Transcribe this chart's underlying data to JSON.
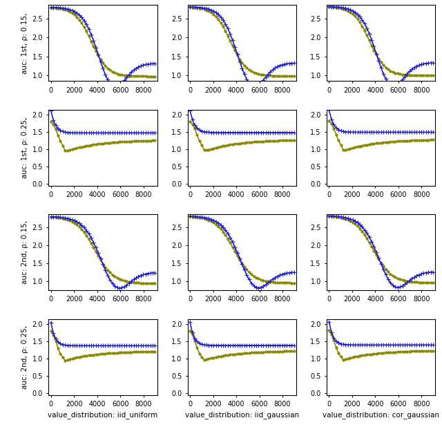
{
  "rows": [
    {
      "auction": "1st",
      "rho": "0.15"
    },
    {
      "auction": "1st",
      "rho": "0.25"
    },
    {
      "auction": "2nd",
      "rho": "0.15"
    },
    {
      "auction": "2nd",
      "rho": "0.25"
    }
  ],
  "cols": [
    "iid_uniform",
    "iid_gaussian",
    "cor_gaussian"
  ],
  "col_labels": [
    "value_distribution: iid_uniform",
    "value_distribution: iid_gaussian",
    "value_distribution: cor_gaussian"
  ],
  "x_ticks": [
    0,
    2000,
    4000,
    6000,
    8000
  ],
  "blue_color": "#2222cc",
  "yellow_color": "#888800",
  "linewidth": 1.2,
  "n_points": 45,
  "marker_every": 1,
  "figsize": [
    6.4,
    6.18
  ],
  "dpi": 100,
  "row0_ylim": [
    0.85,
    2.85
  ],
  "row1_ylim": [
    -0.05,
    2.15
  ],
  "row2_ylim": [
    0.75,
    2.85
  ],
  "row3_ylim": [
    -0.05,
    2.15
  ],
  "row0_yticks": [
    1.0,
    1.5,
    2.0,
    2.5
  ],
  "row1_yticks": [
    0.0,
    0.5,
    1.0,
    1.5,
    2.0
  ],
  "row2_yticks": [
    1.0,
    1.5,
    2.0,
    2.5
  ],
  "row3_yticks": [
    0.0,
    0.5,
    1.0,
    1.5,
    2.0
  ]
}
